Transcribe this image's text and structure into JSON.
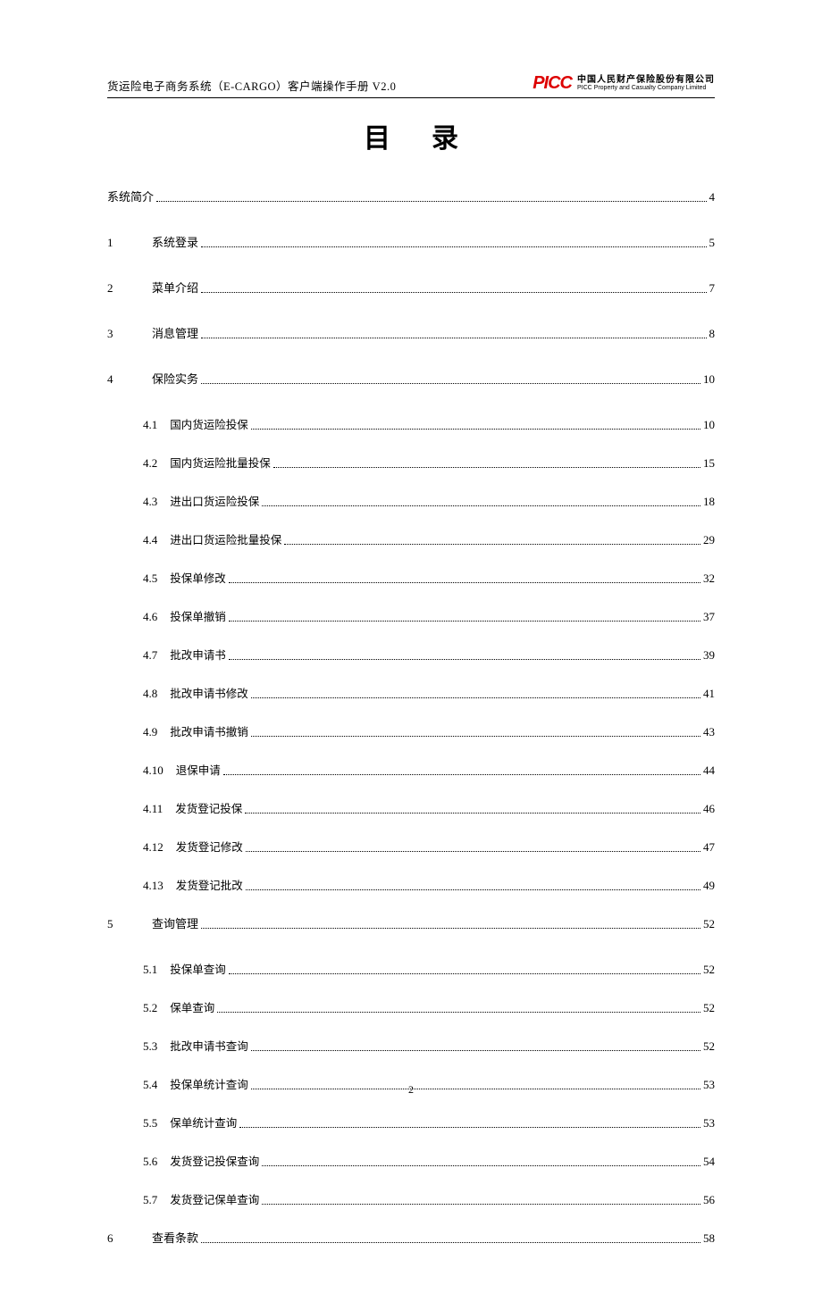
{
  "header": {
    "title": "货运险电子商务系统（E-CARGO）客户端操作手册 V2.0",
    "logo_mark": "PICC",
    "logo_cn": "中国人民财产保险股份有限公司",
    "logo_en": "PICC Property and Casualty Company Limited"
  },
  "doc_title": "目录",
  "footer_page": "2",
  "toc": [
    {
      "level": 0,
      "num": "",
      "label": "系统简介",
      "page": "4"
    },
    {
      "level": 1,
      "num": "1",
      "label": "系统登录",
      "page": "5"
    },
    {
      "level": 1,
      "num": "2",
      "label": "菜单介绍",
      "page": "7"
    },
    {
      "level": 1,
      "num": "3",
      "label": "消息管理",
      "page": "8"
    },
    {
      "level": 1,
      "num": "4",
      "label": "保险实务",
      "page": "10"
    },
    {
      "level": 2,
      "num": "4.1",
      "label": "国内货运险投保",
      "page": "10"
    },
    {
      "level": 2,
      "num": "4.2",
      "label": "国内货运险批量投保",
      "page": "15"
    },
    {
      "level": 2,
      "num": "4.3",
      "label": "进出口货运险投保",
      "page": "18"
    },
    {
      "level": 2,
      "num": "4.4",
      "label": "进出口货运险批量投保",
      "page": "29"
    },
    {
      "level": 2,
      "num": "4.5",
      "label": "投保单修改",
      "page": "32"
    },
    {
      "level": 2,
      "num": "4.6",
      "label": "投保单撤销",
      "page": "37"
    },
    {
      "level": 2,
      "num": "4.7",
      "label": "批改申请书",
      "page": "39"
    },
    {
      "level": 2,
      "num": "4.8",
      "label": "批改申请书修改",
      "page": "41"
    },
    {
      "level": 2,
      "num": "4.9",
      "label": "批改申请书撤销",
      "page": "43"
    },
    {
      "level": 2,
      "num": "4.10",
      "label": "退保申请",
      "page": "44"
    },
    {
      "level": 2,
      "num": "4.11",
      "label": "发货登记投保",
      "page": "46"
    },
    {
      "level": 2,
      "num": "4.12",
      "label": "发货登记修改",
      "page": "47"
    },
    {
      "level": 2,
      "num": "4.13",
      "label": "发货登记批改",
      "page": "49"
    },
    {
      "level": 1,
      "num": "5",
      "label": "查询管理",
      "page": "52"
    },
    {
      "level": 2,
      "num": "5.1",
      "label": "投保单查询",
      "page": "52"
    },
    {
      "level": 2,
      "num": "5.2",
      "label": "保单查询",
      "page": "52"
    },
    {
      "level": 2,
      "num": "5.3",
      "label": "批改申请书查询",
      "page": "52"
    },
    {
      "level": 2,
      "num": "5.4",
      "label": "投保单统计查询",
      "page": "53"
    },
    {
      "level": 2,
      "num": "5.5",
      "label": "保单统计查询",
      "page": "53"
    },
    {
      "level": 2,
      "num": "5.6",
      "label": "发货登记投保查询",
      "page": "54"
    },
    {
      "level": 2,
      "num": "5.7",
      "label": "发货登记保单查询",
      "page": "56"
    },
    {
      "level": 1,
      "num": "6",
      "label": "查看条款",
      "page": "58"
    }
  ],
  "colors": {
    "text": "#000000",
    "logo_red": "#dd0000",
    "background": "#ffffff"
  }
}
